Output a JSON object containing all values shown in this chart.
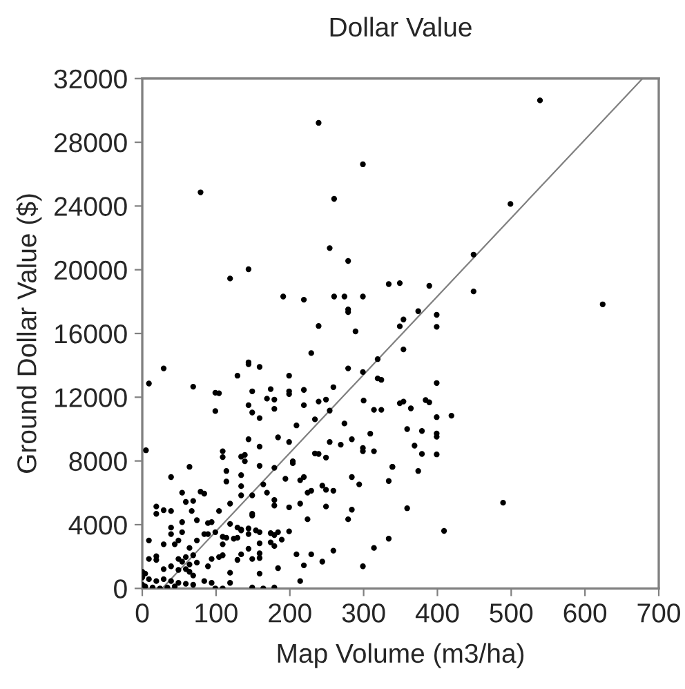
{
  "chart_data": {
    "type": "scatter",
    "title": "Dollar Value",
    "xlabel": "Map Volume (m3/ha)",
    "ylabel": "Ground Dollar Value ($)",
    "xlim": [
      0,
      700
    ],
    "ylim": [
      0,
      32000
    ],
    "xticks": [
      0,
      100,
      200,
      300,
      400,
      500,
      600,
      700
    ],
    "yticks": [
      0,
      4000,
      8000,
      12000,
      16000,
      20000,
      24000,
      28000,
      32000
    ],
    "grid": false,
    "legend": false,
    "series": [
      {
        "color": "#000000",
        "marker": "circle",
        "x": [
          239,
          299,
          79,
          260,
          254,
          279,
          144,
          119,
          334,
          349,
          191,
          219,
          260,
          274,
          299,
          279,
          279,
          539,
          499,
          449,
          624,
          449,
          389,
          374,
          354,
          349,
          399,
          399,
          354,
          399,
          349,
          354,
          364,
          384,
          389,
          399,
          419,
          359,
          379,
          399,
          399,
          369,
          379,
          399,
          339,
          374,
          334,
          359,
          489,
          409,
          239,
          289,
          9,
          29,
          69,
          5,
          144,
          144,
          159,
          229,
          129,
          199,
          279,
          299,
          99,
          104,
          149,
          174,
          199,
          199,
          219,
          144,
          169,
          179,
          149,
          99,
          179,
          159,
          219,
          239,
          249,
          259,
          324,
          319,
          319,
          314,
          300,
          274,
          254,
          234,
          209,
          184,
          199,
          144,
          159,
          139,
          134,
          139,
          109,
          109,
          114,
          64,
          159,
          179,
          194,
          204,
          204,
          234,
          239,
          249,
          254,
          269,
          284,
          299,
          299,
          309,
          314,
          324,
          339,
          219,
          214,
          229,
          224,
          244,
          249,
          259,
          249,
          284,
          284,
          279,
          294,
          224,
          214,
          199,
          179,
          179,
          164,
          169,
          149,
          149,
          149,
          134,
          134,
          134,
          114,
          119,
          79,
          84,
          69,
          54,
          59,
          39,
          19,
          19,
          29,
          39,
          39,
          39,
          54,
          54,
          67,
          74,
          89,
          94,
          104,
          84,
          89,
          99,
          119,
          134,
          134,
          129,
          144,
          154,
          159,
          174,
          179,
          159,
          174,
          184,
          189,
          199,
          109,
          114,
          124,
          129,
          144,
          179,
          144,
          134,
          129,
          159,
          159,
          149,
          109,
          104,
          109,
          119,
          94,
          89,
          74,
          64,
          69,
          49,
          44,
          29,
          9,
          19,
          19,
          9,
          49,
          54,
          59,
          64,
          74,
          39,
          29,
          49,
          59,
          64,
          69,
          0,
          4,
          0,
          9,
          19,
          29,
          39,
          49,
          59,
          69,
          0,
          4,
          14,
          24,
          34,
          44,
          84,
          94,
          99,
          109,
          119,
          149,
          164,
          179,
          214,
          219,
          244,
          299,
          259,
          229,
          209,
          184,
          159,
          314,
          334
        ],
        "values": [
          29220,
          26620,
          24860,
          24450,
          21360,
          20550,
          20030,
          19450,
          19100,
          19160,
          18320,
          18120,
          18320,
          18320,
          18320,
          17510,
          17340,
          30630,
          24130,
          20950,
          17830,
          18640,
          18990,
          17400,
          16880,
          16450,
          17170,
          16420,
          15000,
          12890,
          11620,
          11730,
          11300,
          11820,
          11680,
          10750,
          10840,
          10000,
          9880,
          9720,
          9520,
          8960,
          8440,
          8410,
          7630,
          7370,
          6740,
          5030,
          5380,
          3610,
          16470,
          16130,
          12860,
          13810,
          12660,
          8670,
          14190,
          14070,
          13900,
          14770,
          13350,
          13350,
          13810,
          13580,
          12280,
          12250,
          12370,
          12510,
          12370,
          12200,
          12460,
          11500,
          11910,
          11850,
          11040,
          11130,
          11270,
          10690,
          11500,
          11730,
          11850,
          12630,
          13090,
          14390,
          13180,
          11210,
          11790,
          10350,
          11160,
          10610,
          10230,
          9480,
          9190,
          9360,
          8900,
          8380,
          8270,
          7980,
          8610,
          8240,
          7370,
          7630,
          7690,
          7570,
          6880,
          7980,
          7860,
          8470,
          8440,
          8210,
          9190,
          9020,
          9360,
          8810,
          8610,
          9710,
          8610,
          11210,
          7630,
          6990,
          6790,
          6130,
          6010,
          6450,
          6190,
          6130,
          5140,
          6990,
          4940,
          4340,
          6530,
          4340,
          5320,
          5090,
          5550,
          5200,
          6530,
          6010,
          5840,
          4680,
          4570,
          7110,
          6420,
          5840,
          6710,
          5320,
          6070,
          5950,
          5490,
          6010,
          5430,
          6990,
          5140,
          4680,
          4910,
          4860,
          3820,
          3410,
          4160,
          3530,
          4860,
          4280,
          4100,
          4160,
          4860,
          3410,
          3410,
          3530,
          4050,
          3700,
          3640,
          3820,
          3760,
          3640,
          3530,
          3470,
          3350,
          2830,
          2890,
          3530,
          3060,
          3580,
          3240,
          3180,
          3120,
          3180,
          3410,
          2660,
          2490,
          2140,
          1790,
          2200,
          1910,
          1850,
          2770,
          1970,
          2080,
          980,
          1850,
          1390,
          3010,
          2540,
          2080,
          3010,
          2770,
          2770,
          3010,
          2020,
          1790,
          1850,
          1850,
          1680,
          1970,
          1500,
          1620,
          1390,
          1210,
          1160,
          1210,
          1040,
          810,
          1040,
          930,
          690,
          580,
          460,
          580,
          460,
          350,
          290,
          230,
          230,
          120,
          60,
          0,
          60,
          120,
          460,
          350,
          0,
          0,
          350,
          60,
          0,
          60,
          460,
          1450,
          1680,
          1390,
          2370,
          2140,
          2140,
          1270,
          930,
          2540,
          3120
        ]
      },
      {
        "type": "line",
        "color": "#808080",
        "x": [
          27,
          678
        ],
        "values": [
          0,
          32000
        ]
      }
    ]
  }
}
